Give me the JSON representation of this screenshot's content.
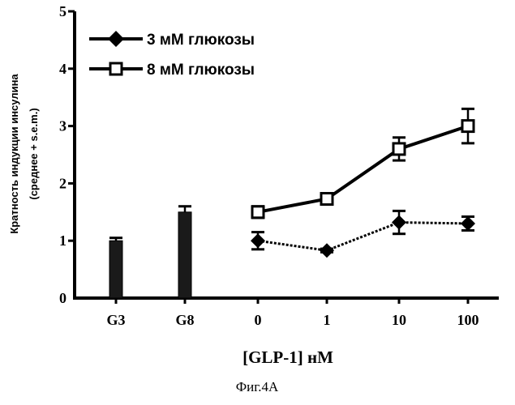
{
  "chart_data": {
    "type": "line",
    "title": "",
    "xlabel": "[GLP-1] нМ",
    "ylabel_line1": "Кратность индукции инсулина",
    "ylabel_line2": "(среднее + s.e.m.)",
    "categories": [
      "G3",
      "G8",
      "0",
      "1",
      "10",
      "100"
    ],
    "ylim": [
      0,
      5
    ],
    "yticks": [
      "0",
      "1",
      "2",
      "3",
      "4",
      "5"
    ],
    "grid": false,
    "legend_position": "top-left",
    "bars": [
      {
        "category": "G3",
        "value": 1.0,
        "error": 0.05
      },
      {
        "category": "G8",
        "value": 1.5,
        "error": 0.1
      }
    ],
    "series": [
      {
        "name": "3 мМ глюкозы",
        "marker": "filled-diamond",
        "line": "dotted",
        "points": [
          {
            "x": "0",
            "y": 1.0,
            "err": 0.15
          },
          {
            "x": "1",
            "y": 0.83,
            "err": 0.03
          },
          {
            "x": "10",
            "y": 1.32,
            "err": 0.2
          },
          {
            "x": "100",
            "y": 1.3,
            "err": 0.12
          }
        ]
      },
      {
        "name": "8 мМ глюкозы",
        "marker": "open-square",
        "line": "solid",
        "points": [
          {
            "x": "0",
            "y": 1.5,
            "err": 0.1
          },
          {
            "x": "1",
            "y": 1.73,
            "err": 0.06
          },
          {
            "x": "10",
            "y": 2.6,
            "err": 0.2
          },
          {
            "x": "100",
            "y": 3.0,
            "err": 0.3
          }
        ]
      }
    ]
  },
  "caption": "Фиг.4А",
  "colors": {
    "ink": "#000000",
    "bar_fill": "#1a1a1a",
    "background": "#ffffff"
  }
}
